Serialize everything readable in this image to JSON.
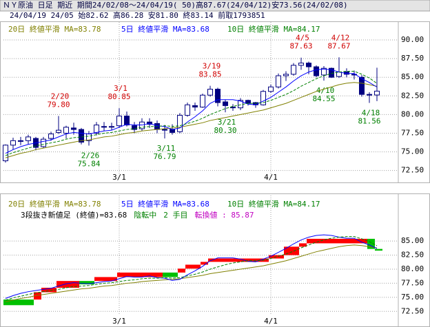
{
  "header": {
    "line1": "ＮＹ原油 日足 期近 期間24/02/08～24/04/19( 50)高87.67(24/04/12)安73.56(24/02/08)",
    "line2": "24/04/19 24/05 始82.62 高86.28 安81.80 終83.14 前取1793851"
  },
  "chart_data": [
    {
      "type": "candlestick",
      "categories": [
        null,
        null,
        null,
        null,
        null,
        null,
        null,
        null,
        null,
        null,
        null,
        null,
        null,
        null,
        null,
        "3/1",
        null,
        null,
        null,
        null,
        null,
        null,
        null,
        null,
        null,
        null,
        null,
        null,
        null,
        null,
        null,
        null,
        null,
        null,
        null,
        "4/1",
        null,
        null,
        null,
        null,
        null,
        null,
        null,
        null,
        null,
        null,
        null,
        null,
        null,
        null
      ],
      "open": [
        73.8,
        75.9,
        76.5,
        76.5,
        76.8,
        75.7,
        76.8,
        77.6,
        77.5,
        78.2,
        78.0,
        76.5,
        77.5,
        78.4,
        78.3,
        78.5,
        79.8,
        78.5,
        78.1,
        79.0,
        78.8,
        78.0,
        78.0,
        77.7,
        79.9,
        81.2,
        81.0,
        82.6,
        83.4,
        81.7,
        81.0,
        80.9,
        81.9,
        81.6,
        81.3,
        83.1,
        83.7,
        85.2,
        85.4,
        86.6,
        86.9,
        86.4,
        85.3,
        86.2,
        85.1,
        85.7,
        85.4,
        85.0,
        82.7,
        82.62
      ],
      "high": [
        76.0,
        76.9,
        77.0,
        77.3,
        77.0,
        77.0,
        77.7,
        79.8,
        78.5,
        78.9,
        78.2,
        77.8,
        79.0,
        79.0,
        78.9,
        80.85,
        80.4,
        79.0,
        79.5,
        79.5,
        79.2,
        78.6,
        78.7,
        80.2,
        81.6,
        81.6,
        82.8,
        83.85,
        83.6,
        82.0,
        81.4,
        82.2,
        82.0,
        81.7,
        83.3,
        84.0,
        85.5,
        85.8,
        86.9,
        87.63,
        87.1,
        86.6,
        86.5,
        86.3,
        87.67,
        86.2,
        85.9,
        85.3,
        83.0,
        86.28
      ],
      "low": [
        73.56,
        75.3,
        75.9,
        76.0,
        75.2,
        75.5,
        76.5,
        77.4,
        76.8,
        77.3,
        76.0,
        75.84,
        77.2,
        77.8,
        77.9,
        78.2,
        78.4,
        77.5,
        77.8,
        78.2,
        77.5,
        76.79,
        77.3,
        77.5,
        79.7,
        80.5,
        80.9,
        82.4,
        81.1,
        80.3,
        80.5,
        80.6,
        81.2,
        80.9,
        81.2,
        82.9,
        83.5,
        84.5,
        85.2,
        86.0,
        85.4,
        85.0,
        84.55,
        84.9,
        84.9,
        85.0,
        84.7,
        82.4,
        81.56,
        81.8
      ],
      "close": [
        75.9,
        76.5,
        76.4,
        77.0,
        75.6,
        76.7,
        77.4,
        77.9,
        78.3,
        78.0,
        76.3,
        77.4,
        78.6,
        78.3,
        78.4,
        79.8,
        78.6,
        78.0,
        79.0,
        78.7,
        78.0,
        77.9,
        77.6,
        79.9,
        81.3,
        81.0,
        82.6,
        83.4,
        81.6,
        81.2,
        80.9,
        81.9,
        81.5,
        81.3,
        83.1,
        83.7,
        85.2,
        85.4,
        86.6,
        86.9,
        86.4,
        85.2,
        86.2,
        85.0,
        85.7,
        85.4,
        85.3,
        82.7,
        82.6,
        83.14
      ],
      "up_color": "#ffffff",
      "down_color": "#000080",
      "edge_color": "#000080",
      "series": [
        {
          "name": "20日 終値平滑 MA=83.78",
          "color": "#808000",
          "style": "solid",
          "values": [
            74.2,
            74.5,
            74.8,
            75.0,
            75.3,
            75.5,
            75.7,
            75.9,
            76.1,
            76.3,
            76.5,
            76.6,
            76.8,
            77.0,
            77.1,
            77.3,
            77.5,
            77.6,
            77.8,
            77.9,
            78.0,
            78.1,
            78.2,
            78.3,
            78.5,
            78.7,
            78.9,
            79.2,
            79.4,
            79.6,
            79.8,
            80.0,
            80.2,
            80.4,
            80.6,
            80.9,
            81.2,
            81.5,
            81.9,
            82.3,
            82.7,
            83.1,
            83.4,
            83.7,
            84.0,
            84.2,
            84.3,
            84.2,
            84.0,
            83.78
          ]
        },
        {
          "name": "5日 終値平滑 MA=83.68",
          "color": "#0000ff",
          "style": "solid",
          "values": [
            74.8,
            75.3,
            75.7,
            76.0,
            76.2,
            76.4,
            76.6,
            77.0,
            77.4,
            77.6,
            77.5,
            77.4,
            77.6,
            77.8,
            77.9,
            78.3,
            78.7,
            78.6,
            78.6,
            78.8,
            78.5,
            78.4,
            78.0,
            78.2,
            79.0,
            79.7,
            80.5,
            81.5,
            82.0,
            82.0,
            82.0,
            81.8,
            81.4,
            81.3,
            81.8,
            82.3,
            83.0,
            83.7,
            84.5,
            85.2,
            85.7,
            86.0,
            86.1,
            86.0,
            85.7,
            85.5,
            85.5,
            84.8,
            84.3,
            83.68
          ]
        },
        {
          "name": "10日 終値平滑 MA=84.17",
          "color": "#008000",
          "style": "dashed",
          "values": [
            74.5,
            74.9,
            75.2,
            75.5,
            75.8,
            76.0,
            76.2,
            76.4,
            76.7,
            76.9,
            77.0,
            77.1,
            77.3,
            77.5,
            77.6,
            77.8,
            78.0,
            78.1,
            78.3,
            78.4,
            78.4,
            78.5,
            78.4,
            78.5,
            78.8,
            79.1,
            79.5,
            80.0,
            80.4,
            80.8,
            81.1,
            81.3,
            81.5,
            81.5,
            81.6,
            81.9,
            82.3,
            82.7,
            83.2,
            83.8,
            84.3,
            84.8,
            85.2,
            85.5,
            85.7,
            85.8,
            85.8,
            85.4,
            84.9,
            84.17
          ]
        }
      ],
      "annotations": [
        {
          "date": "2/20",
          "value": 79.8,
          "value_label": "79.80",
          "color": "#d00000"
        },
        {
          "date": "3/1",
          "value": 80.85,
          "value_label": "80.85",
          "color": "#d00000"
        },
        {
          "date": "3/19",
          "value": 83.85,
          "value_label": "83.85",
          "color": "#d00000"
        },
        {
          "date": "4/5",
          "value": 87.63,
          "value_label": "87.63",
          "color": "#d00000"
        },
        {
          "date": "4/12",
          "value": 87.67,
          "value_label": "87.67",
          "color": "#d00000"
        },
        {
          "date": "2/26",
          "value": 75.84,
          "value_label": "75.84",
          "color": "#008000"
        },
        {
          "date": "3/11",
          "value": 76.79,
          "value_label": "76.79",
          "color": "#008000"
        },
        {
          "date": "3/21",
          "value": 80.3,
          "value_label": "80.30",
          "color": "#008000"
        },
        {
          "date": "4/10",
          "value": 84.55,
          "value_label": "84.55",
          "color": "#008000"
        },
        {
          "date": "4/18",
          "value": 81.56,
          "value_label": "81.56",
          "color": "#008000"
        }
      ],
      "ylim": [
        72.1,
        92.4
      ],
      "yticks": [
        {
          "value": 72.5,
          "label": "72.50"
        },
        {
          "value": 75,
          "label": "75.00"
        },
        {
          "value": 77.5,
          "label": "77.50"
        },
        {
          "value": 80,
          "label": "80.00"
        },
        {
          "value": 82.5,
          "label": "82.50"
        },
        {
          "value": 85,
          "label": "85.00"
        },
        {
          "value": 87.5,
          "label": "87.50"
        },
        {
          "value": 90,
          "label": "90.00"
        }
      ],
      "grid": true
    },
    {
      "type": "line_break",
      "info": [
        {
          "text": "3段抜き新値足 (終値)=83.68",
          "color": "#000000"
        },
        {
          "text": "陰転中",
          "color": "#008000"
        },
        {
          "text": "2 手目",
          "color": "#008000"
        },
        {
          "text": "転換値 : 85.87",
          "color": "#c000c0"
        }
      ],
      "categories": [
        null,
        null,
        null,
        null,
        null,
        null,
        null,
        null,
        null,
        null,
        null,
        null,
        null,
        null,
        null,
        "3/1",
        null,
        null,
        null,
        null,
        null,
        null,
        null,
        null,
        null,
        null,
        null,
        null,
        null,
        null,
        null,
        null,
        null,
        null,
        null,
        "4/1",
        null,
        null,
        null,
        null,
        null,
        null,
        null,
        null,
        null,
        null,
        null,
        null,
        null,
        null
      ],
      "brick_from": [
        74.6,
        null,
        null,
        null,
        74.6,
        75.9,
        null,
        76.7,
        null,
        null,
        77.9,
        null,
        77.9,
        null,
        null,
        78.6,
        null,
        null,
        null,
        null,
        null,
        79.4,
        null,
        79.4,
        80.1,
        null,
        80.8,
        81.3,
        null,
        null,
        null,
        null,
        null,
        null,
        null,
        81.9,
        null,
        82.5,
        null,
        84.0,
        84.6,
        null,
        null,
        null,
        null,
        null,
        null,
        null,
        85.4,
        83.6
      ],
      "brick_to": [
        73.6,
        null,
        null,
        null,
        75.9,
        76.7,
        null,
        77.9,
        null,
        null,
        77.3,
        null,
        78.6,
        null,
        null,
        79.4,
        null,
        null,
        null,
        null,
        null,
        78.6,
        null,
        80.1,
        80.8,
        null,
        81.3,
        81.9,
        null,
        null,
        null,
        null,
        null,
        null,
        null,
        82.5,
        null,
        84.0,
        null,
        84.6,
        85.4,
        null,
        null,
        null,
        null,
        null,
        null,
        null,
        83.6,
        83.3
      ],
      "up_color": "#ff0000",
      "down_color": "#00c000",
      "series": [
        {
          "name": "20日 終値平滑 MA=83.78",
          "color": "#808000",
          "style": "solid",
          "values": [
            74.2,
            74.5,
            74.8,
            75.0,
            75.3,
            75.5,
            75.7,
            75.9,
            76.1,
            76.3,
            76.5,
            76.6,
            76.8,
            77.0,
            77.1,
            77.3,
            77.5,
            77.6,
            77.8,
            77.9,
            78.0,
            78.1,
            78.2,
            78.3,
            78.5,
            78.7,
            78.9,
            79.2,
            79.4,
            79.6,
            79.8,
            80.0,
            80.2,
            80.4,
            80.6,
            80.9,
            81.2,
            81.5,
            81.9,
            82.3,
            82.7,
            83.1,
            83.4,
            83.7,
            84.0,
            84.2,
            84.3,
            84.2,
            84.0,
            83.78
          ]
        },
        {
          "name": "5日 終値平滑 MA=83.68",
          "color": "#0000ff",
          "style": "solid",
          "values": [
            74.8,
            75.3,
            75.7,
            76.0,
            76.2,
            76.4,
            76.6,
            77.0,
            77.4,
            77.6,
            77.5,
            77.4,
            77.6,
            77.8,
            77.9,
            78.3,
            78.7,
            78.6,
            78.6,
            78.8,
            78.5,
            78.4,
            78.0,
            78.2,
            79.0,
            79.7,
            80.5,
            81.5,
            82.0,
            82.0,
            82.0,
            81.8,
            81.4,
            81.3,
            81.8,
            82.3,
            83.0,
            83.7,
            84.5,
            85.2,
            85.7,
            86.0,
            86.1,
            86.0,
            85.7,
            85.5,
            85.5,
            84.8,
            84.3,
            83.68
          ]
        },
        {
          "name": "10日 終値平滑 MA=84.17",
          "color": "#008000",
          "style": "dashed",
          "values": [
            74.5,
            74.9,
            75.2,
            75.5,
            75.8,
            76.0,
            76.2,
            76.4,
            76.7,
            76.9,
            77.0,
            77.1,
            77.3,
            77.5,
            77.6,
            77.8,
            78.0,
            78.1,
            78.3,
            78.4,
            78.4,
            78.5,
            78.4,
            78.5,
            78.8,
            79.1,
            79.5,
            80.0,
            80.4,
            80.8,
            81.1,
            81.3,
            81.5,
            81.5,
            81.6,
            81.9,
            82.3,
            82.7,
            83.2,
            83.8,
            84.3,
            84.8,
            85.2,
            85.5,
            85.7,
            85.8,
            85.8,
            85.4,
            84.9,
            84.17
          ]
        }
      ],
      "ylim": [
        71.8,
        93.1
      ],
      "yticks": [
        {
          "value": 72.5,
          "label": "72.50"
        },
        {
          "value": 75,
          "label": "75.00"
        },
        {
          "value": 77.5,
          "label": "77.50"
        },
        {
          "value": 80,
          "label": "80.00"
        },
        {
          "value": 82.5,
          "label": "82.50"
        },
        {
          "value": 85,
          "label": "85.00"
        }
      ],
      "grid": true
    }
  ]
}
